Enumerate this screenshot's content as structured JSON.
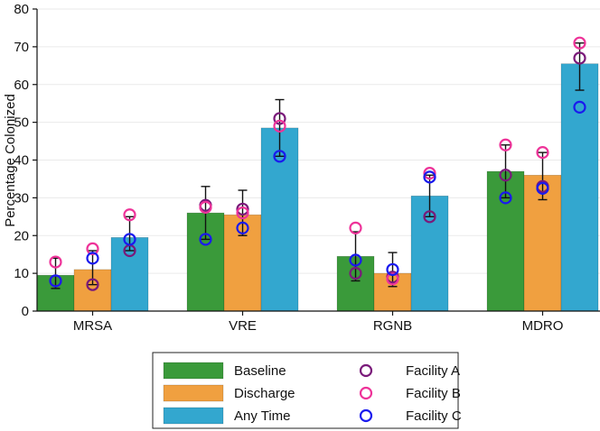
{
  "chart_data": {
    "type": "bar",
    "title": "",
    "xlabel": "",
    "ylabel": "Percentage Colonized",
    "ylim": [
      0,
      80
    ],
    "yticks": [
      0,
      10,
      20,
      30,
      40,
      50,
      60,
      70,
      80
    ],
    "categories": [
      "MRSA",
      "VRE",
      "RGNB",
      "MDRO"
    ],
    "series": [
      {
        "name": "Baseline",
        "color": "#3a9a3a",
        "values": [
          9.5,
          26,
          14.5,
          37
        ],
        "error_low": [
          6,
          19,
          8,
          30
        ],
        "error_high": [
          14,
          33,
          21,
          44
        ]
      },
      {
        "name": "Discharge",
        "color": "#f0a040",
        "values": [
          11,
          25.5,
          10,
          36
        ],
        "error_low": [
          7,
          20,
          6.5,
          29.5
        ],
        "error_high": [
          16,
          32,
          15.5,
          42
        ]
      },
      {
        "name": "Any Time",
        "color": "#33a7cf",
        "values": [
          19.5,
          48.5,
          30.5,
          65.5
        ],
        "error_low": [
          16,
          41,
          25,
          58.5
        ],
        "error_high": [
          25,
          56,
          36,
          71
        ]
      }
    ],
    "facilities": [
      {
        "name": "Facility A",
        "color": "#7a1a7a",
        "points": [
          [
            8,
            7,
            16
          ],
          [
            28,
            27,
            51
          ],
          [
            10,
            9,
            25
          ],
          [
            36,
            33,
            67
          ]
        ]
      },
      {
        "name": "Facility B",
        "color": "#ee3399",
        "points": [
          [
            13,
            16.5,
            25.5
          ],
          [
            27.5,
            26,
            49
          ],
          [
            22,
            8.5,
            36.5
          ],
          [
            44,
            42,
            71
          ]
        ]
      },
      {
        "name": "Facility C",
        "color": "#1a1aee",
        "points": [
          [
            8,
            14,
            19
          ],
          [
            19,
            22,
            41
          ],
          [
            13.5,
            11,
            35.5
          ],
          [
            30,
            32.5,
            54
          ]
        ]
      }
    ],
    "legend": {
      "placement": "bottom-center",
      "bars": [
        "Baseline",
        "Discharge",
        "Any Time"
      ],
      "markers": [
        "Facility A",
        "Facility B",
        "Facility C"
      ]
    }
  }
}
